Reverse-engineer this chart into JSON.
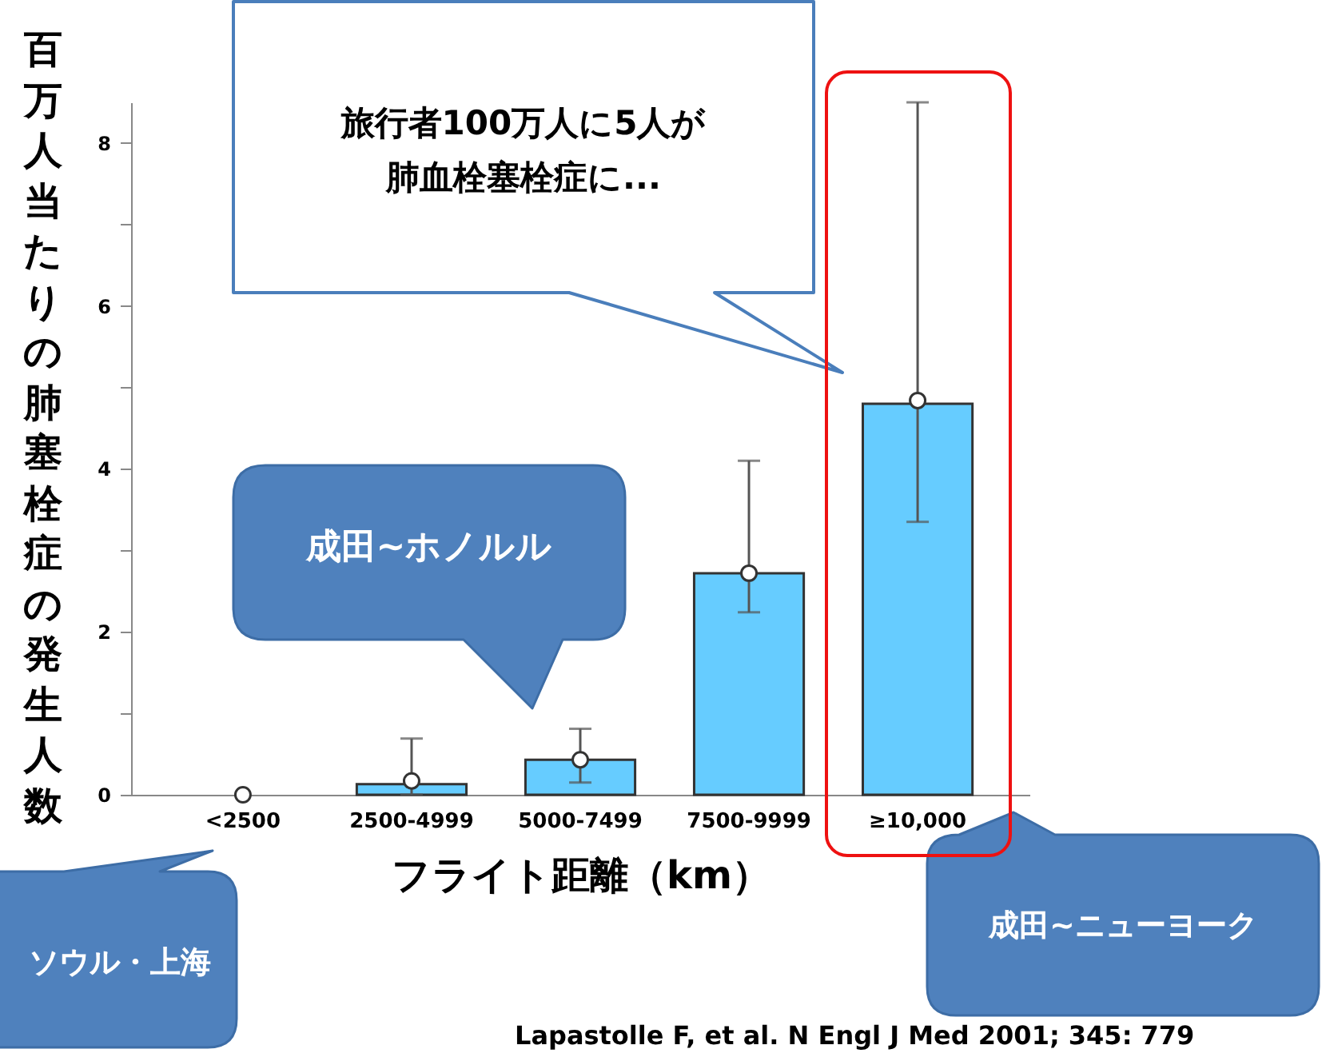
{
  "chart_data": {
    "type": "bar",
    "ylabel": "百万人当たりの肺塞栓症の発生人数",
    "xlabel": "フライト距離（km）",
    "categories": [
      "<2500",
      "2500-4999",
      "5000-7499",
      "7500-9999",
      "≥10,000"
    ],
    "series": [
      {
        "type": "bar",
        "color": "#66ccff",
        "values": [
          0,
          0.13,
          0.43,
          2.72,
          4.8
        ],
        "errors": [
          null,
          [
            0,
            0.69
          ],
          [
            0.15,
            0.81
          ],
          [
            2.24,
            4.1
          ],
          [
            3.35,
            8.5
          ]
        ]
      },
      {
        "type": "scatter",
        "color": "#ffffff",
        "values": [
          0,
          0.17,
          0.43,
          2.72,
          4.84
        ]
      }
    ],
    "marker": "circle",
    "ylim": [
      0,
      8.5
    ],
    "yticks": [
      0,
      {
        "value": 1,
        "label": null
      },
      2,
      {
        "value": 3,
        "label": null
      },
      4,
      {
        "value": 5,
        "label": null
      },
      6,
      {
        "value": 7,
        "label": null
      },
      8
    ],
    "annotations": [
      "旅行者100万人に5人が肺血栓塞栓症に...",
      "成田~ホノルル",
      "ソウル・上海",
      "成田~ニューヨーク",
      "Lapastolle F, et al. N Engl J Med 2001; 345: 779"
    ]
  }
}
